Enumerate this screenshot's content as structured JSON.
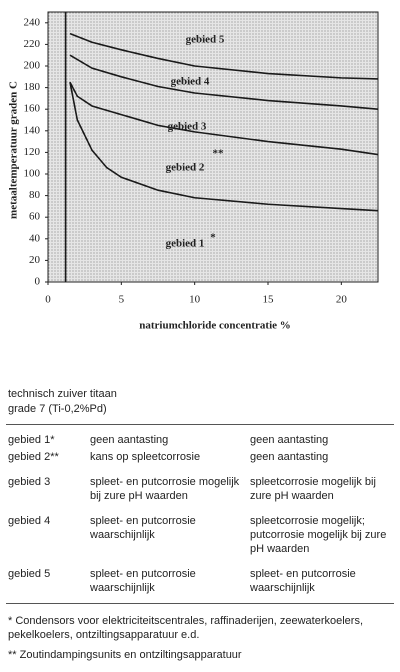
{
  "chart_data": {
    "type": "line",
    "x_label": "natriumchloride concentratie %",
    "y_label": "metaaltemperatuur graden C",
    "xlim": [
      0,
      22.5
    ],
    "xticks": [
      0,
      5,
      10,
      15,
      20
    ],
    "ylim": [
      0,
      250
    ],
    "yticks": [
      0,
      20,
      40,
      60,
      80,
      100,
      120,
      140,
      160,
      180,
      200,
      220,
      240
    ],
    "grid": false,
    "color": "#1a1a1a",
    "series": [
      {
        "x": [
          1.2,
          1.2
        ],
        "values": [
          0,
          250
        ]
      },
      {
        "x": [
          1.5,
          3,
          5,
          7.5,
          10,
          15,
          20,
          22.5
        ],
        "values": [
          230,
          222,
          215,
          207,
          200,
          193,
          189,
          188
        ]
      },
      {
        "x": [
          1.5,
          3,
          5,
          7.5,
          10,
          15,
          20,
          22.5
        ],
        "values": [
          210,
          198,
          190,
          181,
          175,
          168,
          163,
          160
        ]
      },
      {
        "x": [
          1.5,
          2,
          3,
          5,
          7.5,
          10,
          15,
          20,
          22.5
        ],
        "values": [
          185,
          172,
          163,
          155,
          145,
          139,
          130,
          123,
          118
        ]
      },
      {
        "x": [
          1.5,
          2,
          3,
          4,
          5,
          7.5,
          10,
          15,
          20,
          22.5
        ],
        "values": [
          185,
          150,
          122,
          106,
          97,
          85,
          78,
          72,
          68,
          66
        ]
      }
    ],
    "annotations": [
      "gebied 5",
      "gebied 4",
      "gebied 3",
      "gebied 2",
      "**",
      "gebied 1",
      "*"
    ]
  },
  "caption": {
    "line1": "technisch zuiver titaan",
    "line2": "grade 7 (Ti-0,2%Pd)"
  },
  "table": {
    "rows": [
      [
        "gebied 1*",
        "geen aantasting",
        "geen aantasting"
      ],
      [
        "gebied 2**",
        "kans op spleetcorrosie",
        "geen aantasting"
      ],
      [
        "gebied 3",
        "spleet- en putcorrosie mogelijk bij zure pH waarden",
        "spleetcorrosie mogelijk bij zure pH waarden"
      ],
      [
        "gebied 4",
        "spleet- en putcorrosie waarschijnlijk",
        "spleetcorrosie mogelijk; putcorrosie mogelijk bij zure pH waarden"
      ],
      [
        "gebied 5",
        "spleet- en putcorrosie waarschijnlijk",
        "spleet- en putcorrosie waarschijnlijk"
      ]
    ]
  },
  "footnotes": [
    "* Condensors voor elektriciteitscentrales, raffinaderijen, zeewaterkoelers, pekelkoelers, ontziltingsapparatuur e.d.",
    "** Zoutindampingsunits en ontziltingsapparatuur"
  ]
}
